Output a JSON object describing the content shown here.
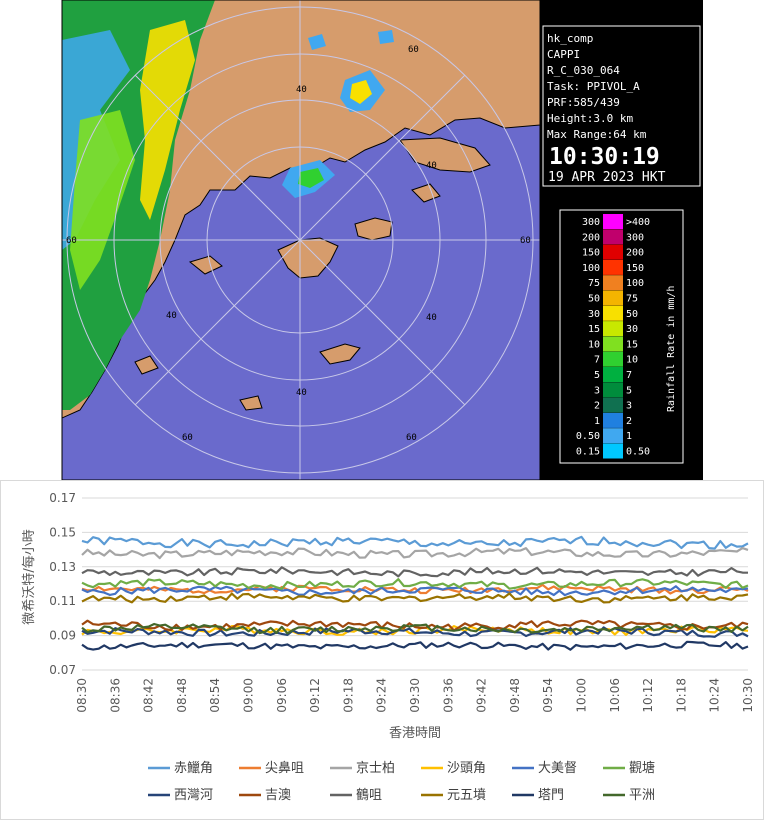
{
  "radar": {
    "info": {
      "product": "hk_comp",
      "type": "CAPPI",
      "scan": "R_C_030_064",
      "task": "Task: PPIVOL_A",
      "prf": "PRF:585/439",
      "height": "Height:3.0 km",
      "range": "Max Range:64 km",
      "time": "10:30:19",
      "date": "19 APR 2023 HKT"
    },
    "ring_labels": [
      "40",
      "60",
      "40",
      "40",
      "60",
      "40",
      "60",
      "40",
      "60",
      "60"
    ],
    "legend": {
      "title": "Rainfall Rate in mm/h",
      "rows": [
        {
          "lo": "300",
          "hi": ">400",
          "color": "#ff00ff"
        },
        {
          "lo": "200",
          "hi": "300",
          "color": "#c0006c"
        },
        {
          "lo": "150",
          "hi": "200",
          "color": "#e00000"
        },
        {
          "lo": "100",
          "hi": "150",
          "color": "#ff3300"
        },
        {
          "lo": "75",
          "hi": "100",
          "color": "#f08020"
        },
        {
          "lo": "50",
          "hi": "75",
          "color": "#f4b400"
        },
        {
          "lo": "30",
          "hi": "50",
          "color": "#f8e000"
        },
        {
          "lo": "15",
          "hi": "30",
          "color": "#c8e800"
        },
        {
          "lo": "10",
          "hi": "15",
          "color": "#80e020"
        },
        {
          "lo": "7",
          "hi": "10",
          "color": "#30d030"
        },
        {
          "lo": "5",
          "hi": "7",
          "color": "#00b040"
        },
        {
          "lo": "3",
          "hi": "5",
          "color": "#008c3c"
        },
        {
          "lo": "2",
          "hi": "3",
          "color": "#107050"
        },
        {
          "lo": "1",
          "hi": "2",
          "color": "#2080e0"
        },
        {
          "lo": "0.50",
          "hi": "1",
          "color": "#40a8f0"
        },
        {
          "lo": "0.15",
          "hi": "0.50",
          "color": "#00c8ff"
        }
      ]
    },
    "colors": {
      "sea": "#6a6acc",
      "land": "#d69c6c",
      "frame": "#000000"
    }
  },
  "chart_data": {
    "type": "line",
    "xlabel": "香港時間",
    "ylabel": "微希沃特/每小時",
    "ylim": [
      0.07,
      0.17
    ],
    "yticks": [
      "0.07",
      "0.09",
      "0.11",
      "0.13",
      "0.15",
      "0.17"
    ],
    "x_ticks": [
      "08:30",
      "08:36",
      "08:42",
      "08:48",
      "08:54",
      "09:00",
      "09:06",
      "09:12",
      "09:18",
      "09:24",
      "09:30",
      "09:36",
      "09:42",
      "09:48",
      "09:54",
      "10:00",
      "10:06",
      "10:12",
      "10:18",
      "10:24",
      "10:30"
    ],
    "x_range_minutes": [
      0,
      120
    ],
    "points_per_series": 121,
    "legend_position": "bottom",
    "grid": true,
    "series": [
      {
        "name": "赤鱲角",
        "color": "#5b9bd5",
        "mean": 0.144,
        "amp": 0.0025,
        "seed": 1
      },
      {
        "name": "尖鼻咀",
        "color": "#ed7d31",
        "mean": 0.117,
        "amp": 0.0018,
        "seed": 2
      },
      {
        "name": "京士柏",
        "color": "#a5a5a5",
        "mean": 0.138,
        "amp": 0.0022,
        "seed": 3
      },
      {
        "name": "沙頭角",
        "color": "#ffc000",
        "mean": 0.093,
        "amp": 0.002,
        "seed": 4
      },
      {
        "name": "大美督",
        "color": "#4472c4",
        "mean": 0.116,
        "amp": 0.002,
        "seed": 5
      },
      {
        "name": "觀塘",
        "color": "#70ad47",
        "mean": 0.12,
        "amp": 0.002,
        "seed": 6
      },
      {
        "name": "西灣河",
        "color": "#264478",
        "mean": 0.092,
        "amp": 0.002,
        "seed": 7
      },
      {
        "name": "吉澳",
        "color": "#9e480e",
        "mean": 0.096,
        "amp": 0.0022,
        "seed": 8
      },
      {
        "name": "鶴咀",
        "color": "#636363",
        "mean": 0.127,
        "amp": 0.002,
        "seed": 9
      },
      {
        "name": "元五墳",
        "color": "#997300",
        "mean": 0.112,
        "amp": 0.002,
        "seed": 10
      },
      {
        "name": "塔門",
        "color": "#203864",
        "mean": 0.084,
        "amp": 0.0018,
        "seed": 11
      },
      {
        "name": "平洲",
        "color": "#43682b",
        "mean": 0.094,
        "amp": 0.002,
        "seed": 12
      }
    ]
  }
}
